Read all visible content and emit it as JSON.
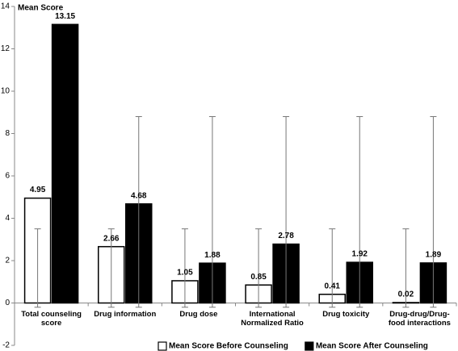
{
  "chart_data": {
    "type": "bar",
    "ylabel": "Mean Score",
    "categories": [
      "Total counseling score",
      "Drug information",
      "Drug dose",
      "International Normalized Ratio",
      "Drug toxicity",
      "Drug-drug/Drug-food interactions"
    ],
    "series": [
      {
        "name": "Mean Score Before Counseling",
        "color": "#ffffff",
        "edgecolor": "#000000",
        "values": [
          4.95,
          2.66,
          1.05,
          0.85,
          0.41,
          0.02
        ],
        "error_low": [
          -0.2,
          -0.2,
          -0.2,
          -0.2,
          -0.2,
          -0.2
        ],
        "error_high": [
          3.5,
          3.5,
          3.5,
          3.5,
          3.5,
          3.5
        ]
      },
      {
        "name": "Mean Score After Counseling",
        "color": "#000000",
        "edgecolor": "#000000",
        "values": [
          13.15,
          4.68,
          1.88,
          2.78,
          1.92,
          1.89
        ],
        "error_low": [
          null,
          -0.2,
          -0.2,
          -0.2,
          -0.2,
          -0.2
        ],
        "error_high": [
          null,
          8.8,
          8.8,
          8.8,
          8.8,
          8.8
        ]
      }
    ],
    "ylim": [
      -2,
      14
    ],
    "yticks": [
      -2,
      0,
      2,
      4,
      6,
      8,
      10,
      12,
      14
    ],
    "legend": "bottom"
  }
}
